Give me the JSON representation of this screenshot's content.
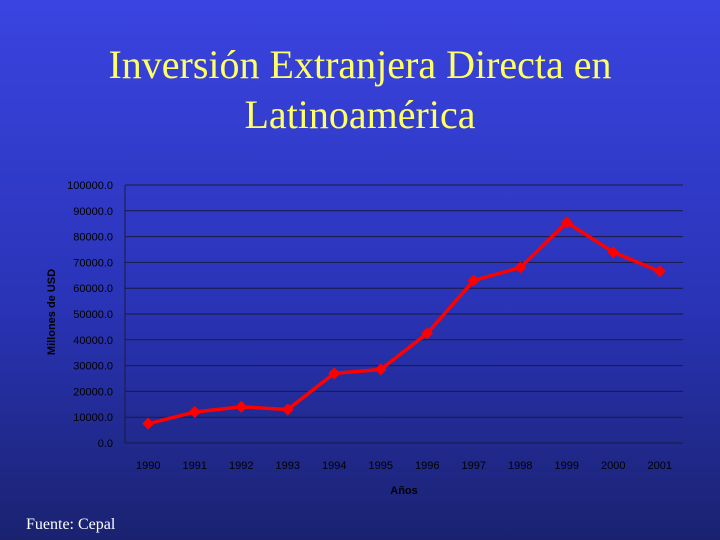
{
  "title": {
    "line1": "Inversión Extranjera Directa en",
    "line2": "Latinoamérica"
  },
  "source": "Fuente: Cepal",
  "colors": {
    "title": "#ffff66",
    "series": "#ff0000",
    "grid": "#1a1a40"
  },
  "chart_data": {
    "type": "line",
    "title": "",
    "xlabel": "Años",
    "ylabel": "Millones de USD",
    "ylim": [
      0,
      100000
    ],
    "y_ticks": [
      "0.0",
      "10000.0",
      "20000.0",
      "30000.0",
      "40000.0",
      "50000.0",
      "60000.0",
      "70000.0",
      "80000.0",
      "90000.0",
      "100000.0"
    ],
    "categories": [
      "1990",
      "1991",
      "1992",
      "1993",
      "1994",
      "1995",
      "1996",
      "1997",
      "1998",
      "1999",
      "2000",
      "2001"
    ],
    "series": [
      {
        "values": [
          7500,
          12000,
          14000,
          13000,
          27000,
          28500,
          42500,
          63000,
          68000,
          85500,
          74000,
          66500
        ]
      }
    ],
    "grid": true,
    "legend": "none"
  }
}
